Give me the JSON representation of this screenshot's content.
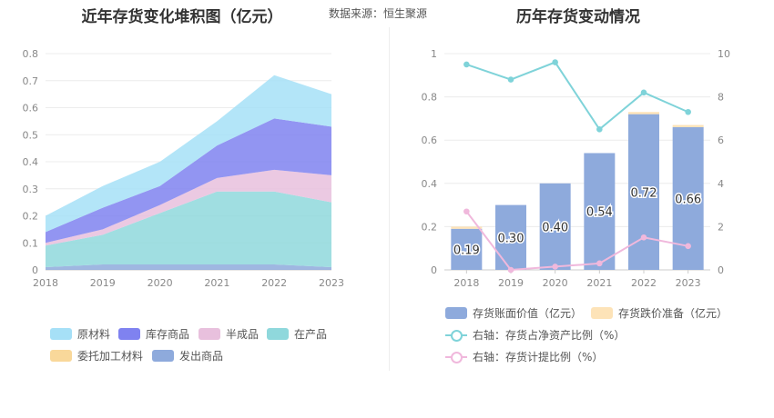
{
  "header": {
    "left_title": "近年存货变化堆积图（亿元）",
    "source": "数据来源：恒生聚源",
    "right_title": "历年存货变动情况"
  },
  "chart_data": [
    {
      "type": "area",
      "stacked": true,
      "title": "近年存货变化堆积图（亿元）",
      "categories": [
        "2018",
        "2019",
        "2020",
        "2021",
        "2022",
        "2023"
      ],
      "ylim": [
        0,
        0.8
      ],
      "yticks": [
        "0",
        "0.1",
        "0.2",
        "0.3",
        "0.4",
        "0.5",
        "0.6",
        "0.7",
        "0.8"
      ],
      "series": [
        {
          "name": "发出商品",
          "color": "#8eaadc",
          "values": [
            0.01,
            0.02,
            0.02,
            0.02,
            0.02,
            0.01
          ]
        },
        {
          "name": "委托加工材料",
          "color": "#f9d89a",
          "values": [
            0,
            0,
            0,
            0,
            0,
            0
          ]
        },
        {
          "name": "在产品",
          "color": "#8fd8dc",
          "values": [
            0.08,
            0.11,
            0.19,
            0.27,
            0.27,
            0.24
          ]
        },
        {
          "name": "半成品",
          "color": "#e8c0dd",
          "values": [
            0.01,
            0.02,
            0.03,
            0.05,
            0.08,
            0.1
          ]
        },
        {
          "name": "库存商品",
          "color": "#7f82f0",
          "values": [
            0.04,
            0.08,
            0.07,
            0.12,
            0.19,
            0.18
          ]
        },
        {
          "name": "原材料",
          "color": "#a6e0f7",
          "values": [
            0.06,
            0.08,
            0.09,
            0.09,
            0.16,
            0.12
          ]
        }
      ],
      "legend_order": [
        "原材料",
        "库存商品",
        "半成品",
        "在产品",
        "委托加工材料",
        "发出商品"
      ]
    },
    {
      "type": "bar",
      "title": "历年存货变动情况",
      "categories": [
        "2018",
        "2019",
        "2020",
        "2021",
        "2022",
        "2023"
      ],
      "ylim": [
        0,
        1
      ],
      "yticks": [
        "0",
        "0.2",
        "0.4",
        "0.6",
        "0.8",
        "1"
      ],
      "y2lim": [
        0,
        10
      ],
      "y2ticks": [
        "0",
        "2",
        "4",
        "6",
        "8",
        "10"
      ],
      "series": [
        {
          "name": "存货账面价值（亿元）",
          "color": "#8eaadc",
          "values": [
            0.19,
            0.3,
            0.4,
            0.54,
            0.72,
            0.66
          ],
          "labels": [
            "0.19",
            "0.30",
            "0.40",
            "0.54",
            "0.72",
            "0.66"
          ]
        },
        {
          "name": "存货跌价准备（亿元）",
          "color": "#fde3b8",
          "values": [
            0.01,
            0,
            0,
            0,
            0.01,
            0.01
          ]
        },
        {
          "name": "右轴：存货占净资产比例（%）",
          "color": "#7fd3d9",
          "type": "line",
          "axis": "right",
          "values": [
            9.5,
            8.8,
            9.6,
            6.5,
            8.2,
            7.3
          ]
        },
        {
          "name": "右轴：存货计提比例（%）",
          "color": "#f0b8dc",
          "type": "line",
          "axis": "right",
          "values": [
            2.7,
            0.0,
            0.15,
            0.3,
            1.5,
            1.1
          ]
        }
      ]
    }
  ]
}
